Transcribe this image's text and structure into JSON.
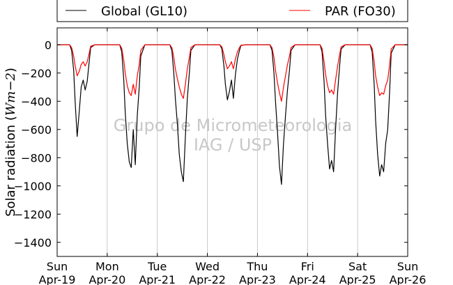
{
  "chart_data": {
    "type": "line",
    "ylabel_prefix": "Solar radiation (",
    "ylabel_unit": "Wm−2",
    "ylabel_suffix": ")",
    "ylim": [
      -1500,
      120
    ],
    "xlim": [
      0,
      7
    ],
    "yticks": [
      0,
      -200,
      -400,
      -600,
      -800,
      -1000,
      -1200,
      -1400
    ],
    "ytick_labels": [
      "0",
      "−200",
      "−400",
      "−600",
      "−800",
      "−1000",
      "−1200",
      "−1400"
    ],
    "xticks": [
      0,
      1,
      2,
      3,
      4,
      5,
      6,
      7
    ],
    "xtick_labels_day": [
      "Sun",
      "Mon",
      "Tue",
      "Wed",
      "Thu",
      "Fri",
      "Sat",
      "Sun"
    ],
    "xtick_labels_date": [
      "Apr-19",
      "Apr-20",
      "Apr-21",
      "Apr-22",
      "Apr-23",
      "Apr-24",
      "Apr-25",
      "Apr-26"
    ],
    "grid": "vertical",
    "legend_position": "top",
    "series": [
      {
        "name": "Global (GL10)",
        "color": "#000000",
        "x": [
          0.0,
          0.25,
          0.29,
          0.33,
          0.36,
          0.4,
          0.44,
          0.48,
          0.52,
          0.56,
          0.6,
          0.64,
          0.67,
          0.75,
          1.0,
          1.25,
          1.29,
          1.33,
          1.36,
          1.4,
          1.44,
          1.48,
          1.52,
          1.56,
          1.6,
          1.64,
          1.67,
          1.75,
          2.0,
          2.25,
          2.29,
          2.33,
          2.36,
          2.4,
          2.44,
          2.48,
          2.52,
          2.56,
          2.6,
          2.64,
          2.67,
          2.75,
          3.0,
          3.25,
          3.29,
          3.33,
          3.36,
          3.4,
          3.44,
          3.48,
          3.52,
          3.56,
          3.6,
          3.64,
          3.67,
          3.75,
          4.0,
          4.25,
          4.29,
          4.33,
          4.36,
          4.4,
          4.44,
          4.48,
          4.52,
          4.56,
          4.6,
          4.64,
          4.67,
          4.75,
          5.0,
          5.25,
          5.29,
          5.33,
          5.36,
          5.4,
          5.44,
          5.48,
          5.52,
          5.56,
          5.6,
          5.64,
          5.67,
          5.75,
          6.0,
          6.25,
          6.29,
          6.33,
          6.36,
          6.4,
          6.44,
          6.48,
          6.52,
          6.56,
          6.6,
          6.64,
          6.67,
          6.75,
          7.0
        ],
        "y": [
          0,
          0,
          -40,
          -180,
          -410,
          -650,
          -480,
          -300,
          -250,
          -320,
          -260,
          -120,
          -20,
          0,
          0,
          0,
          -50,
          -250,
          -480,
          -700,
          -830,
          -870,
          -600,
          -850,
          -500,
          -300,
          -80,
          0,
          0,
          0,
          -40,
          -200,
          -380,
          -560,
          -780,
          -900,
          -970,
          -650,
          -380,
          -200,
          -40,
          0,
          0,
          0,
          -30,
          -150,
          -280,
          -390,
          -330,
          -250,
          -380,
          -210,
          -100,
          -40,
          -5,
          0,
          0,
          0,
          -40,
          -200,
          -400,
          -620,
          -860,
          -990,
          -700,
          -500,
          -320,
          -180,
          -40,
          0,
          0,
          0,
          -50,
          -260,
          -500,
          -700,
          -880,
          -820,
          -900,
          -600,
          -340,
          -150,
          -30,
          0,
          0,
          0,
          -50,
          -280,
          -540,
          -780,
          -930,
          -850,
          -900,
          -700,
          -600,
          -330,
          -60,
          0,
          0
        ]
      },
      {
        "name": "PAR (FO30)",
        "color": "#ff0000",
        "x": [
          0.0,
          0.25,
          0.29,
          0.33,
          0.36,
          0.4,
          0.44,
          0.48,
          0.52,
          0.56,
          0.6,
          0.64,
          0.67,
          0.75,
          1.0,
          1.25,
          1.29,
          1.33,
          1.36,
          1.4,
          1.44,
          1.48,
          1.52,
          1.56,
          1.6,
          1.64,
          1.67,
          1.75,
          2.0,
          2.25,
          2.29,
          2.33,
          2.36,
          2.4,
          2.44,
          2.48,
          2.52,
          2.56,
          2.6,
          2.64,
          2.67,
          2.75,
          3.0,
          3.25,
          3.29,
          3.33,
          3.36,
          3.4,
          3.44,
          3.48,
          3.52,
          3.56,
          3.6,
          3.64,
          3.67,
          3.75,
          4.0,
          4.25,
          4.29,
          4.33,
          4.36,
          4.4,
          4.44,
          4.48,
          4.52,
          4.56,
          4.6,
          4.64,
          4.67,
          4.75,
          5.0,
          5.25,
          5.29,
          5.33,
          5.36,
          5.4,
          5.44,
          5.48,
          5.52,
          5.56,
          5.6,
          5.64,
          5.67,
          5.75,
          6.0,
          6.25,
          6.29,
          6.33,
          6.36,
          6.4,
          6.44,
          6.48,
          6.52,
          6.56,
          6.6,
          6.64,
          6.67,
          6.75,
          7.0
        ],
        "y": [
          0,
          0,
          -20,
          -80,
          -150,
          -220,
          -190,
          -140,
          -120,
          -150,
          -120,
          -60,
          -10,
          0,
          0,
          0,
          -25,
          -110,
          -200,
          -290,
          -340,
          -360,
          -280,
          -350,
          -220,
          -140,
          -40,
          0,
          0,
          0,
          -20,
          -90,
          -170,
          -240,
          -300,
          -350,
          -380,
          -280,
          -170,
          -90,
          -20,
          0,
          0,
          0,
          -15,
          -70,
          -120,
          -170,
          -150,
          -120,
          -170,
          -100,
          -50,
          -20,
          -3,
          0,
          0,
          0,
          -20,
          -90,
          -180,
          -270,
          -340,
          -400,
          -300,
          -220,
          -140,
          -80,
          -20,
          0,
          0,
          0,
          -25,
          -120,
          -210,
          -290,
          -340,
          -320,
          -350,
          -250,
          -150,
          -70,
          -15,
          0,
          0,
          0,
          -25,
          -120,
          -220,
          -300,
          -360,
          -340,
          -350,
          -290,
          -250,
          -140,
          -30,
          0,
          0
        ]
      }
    ],
    "watermark_line1": "Grupo de Micrometeorologia",
    "watermark_line2": "IAG / USP"
  }
}
